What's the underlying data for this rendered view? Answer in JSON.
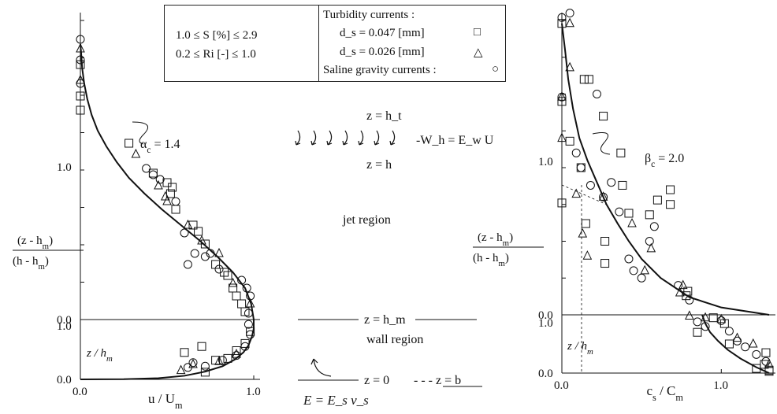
{
  "legend": {
    "range_S": "1.0 ≤ S [%] ≤ 2.9",
    "range_Ri": "0.2 ≤ Ri [-] ≤ 1.0",
    "turbidity_heading": "Turbidity currents :",
    "turbidity_047": "d_s = 0.047 [mm]",
    "turbidity_026": "d_s = 0.026 [mm]",
    "saline": "Saline gravity currents :",
    "symbols": {
      "d047": "□",
      "d026": "△",
      "saline": "○"
    }
  },
  "middle_labels": {
    "z_ht": "z = h_t",
    "entrainment": "-W_h = E_w U",
    "z_h": "z = h",
    "jet_region": "jet region",
    "z_hm": "z = h_m",
    "wall_region": "wall region",
    "z_0": "z = 0",
    "z_b": "- - - z = b",
    "E_formula": "E = E_s v_s"
  },
  "chart_data": [
    {
      "type": "scatter",
      "name": "velocity",
      "xlabel": "u / U_m",
      "ylabel_upper": "(z - h_m) / (h - h_m)",
      "ylabel_lower": "z / h_m",
      "curve_label": "α_c = 1.4",
      "x_ticks": [
        "0.0",
        "1.0"
      ],
      "upper_ticks": [
        "1.0",
        "0.0"
      ],
      "lower_ticks": [
        "1.0",
        "0.0"
      ],
      "xlim": [
        0,
        1
      ],
      "upper_ylim": [
        0,
        1.9
      ],
      "lower_ylim": [
        0,
        1
      ],
      "fit_curve": {
        "upper": [
          [
            1.0,
            0.0
          ],
          [
            0.985,
            0.1
          ],
          [
            0.95,
            0.2
          ],
          [
            0.88,
            0.3
          ],
          [
            0.79,
            0.4
          ],
          [
            0.69,
            0.5
          ],
          [
            0.58,
            0.6
          ],
          [
            0.47,
            0.7
          ],
          [
            0.37,
            0.8
          ],
          [
            0.28,
            0.9
          ],
          [
            0.21,
            1.0
          ],
          [
            0.15,
            1.1
          ],
          [
            0.1,
            1.2
          ],
          [
            0.065,
            1.3
          ],
          [
            0.04,
            1.4
          ],
          [
            0.022,
            1.5
          ],
          [
            0.01,
            1.6
          ],
          [
            0.004,
            1.7
          ],
          [
            0.0,
            1.75
          ]
        ],
        "lower": [
          [
            0.0,
            0.0
          ],
          [
            0.25,
            0.003
          ],
          [
            0.45,
            0.02
          ],
          [
            0.6,
            0.06
          ],
          [
            0.72,
            0.13
          ],
          [
            0.82,
            0.22
          ],
          [
            0.89,
            0.33
          ],
          [
            0.94,
            0.45
          ],
          [
            0.97,
            0.57
          ],
          [
            0.99,
            0.72
          ],
          [
            1.0,
            0.85
          ],
          [
            1.0,
            1.0
          ]
        ]
      },
      "series": [
        {
          "name": "d_s = 0.047 [mm]",
          "marker": "square",
          "upper": [
            [
              0.0,
              1.62
            ],
            [
              0.0,
              1.42
            ],
            [
              0.0,
              1.33
            ],
            [
              0.28,
              1.12
            ],
            [
              0.42,
              0.93
            ],
            [
              0.5,
              0.87
            ],
            [
              0.53,
              0.84
            ],
            [
              0.52,
              0.8
            ],
            [
              0.55,
              0.7
            ],
            [
              0.65,
              0.6
            ],
            [
              0.68,
              0.56
            ],
            [
              0.72,
              0.48
            ],
            [
              0.78,
              0.35
            ],
            [
              0.83,
              0.3
            ],
            [
              0.85,
              0.28
            ],
            [
              0.88,
              0.2
            ],
            [
              0.9,
              0.15
            ],
            [
              0.93,
              0.1
            ],
            [
              0.95,
              0.05
            ]
          ],
          "lower": [
            [
              0.6,
              0.45
            ],
            [
              0.7,
              0.55
            ],
            [
              0.78,
              0.32
            ],
            [
              0.85,
              0.35
            ],
            [
              0.9,
              0.48
            ],
            [
              0.95,
              0.6
            ],
            [
              0.98,
              0.8
            ],
            [
              0.72,
              0.12
            ]
          ]
        },
        {
          "name": "d_s = 0.026 [mm]",
          "marker": "triangle",
          "upper": [
            [
              0.0,
              1.52
            ],
            [
              0.0,
              1.72
            ],
            [
              0.32,
              1.05
            ],
            [
              0.45,
              0.85
            ],
            [
              0.49,
              0.78
            ],
            [
              0.5,
              0.75
            ],
            [
              0.62,
              0.6
            ],
            [
              0.7,
              0.5
            ],
            [
              0.8,
              0.42
            ],
            [
              0.88,
              0.23
            ],
            [
              0.98,
              0.1
            ]
          ],
          "lower": [
            [
              0.58,
              0.15
            ],
            [
              0.65,
              0.25
            ],
            [
              0.8,
              0.3
            ],
            [
              0.9,
              0.42
            ]
          ]
        },
        {
          "name": "Saline gravity currents :",
          "marker": "circle",
          "upper": [
            [
              0.0,
              1.78
            ],
            [
              0.0,
              1.65
            ],
            [
              0.0,
              1.5
            ],
            [
              0.38,
              0.96
            ],
            [
              0.42,
              0.92
            ],
            [
              0.46,
              0.89
            ],
            [
              0.55,
              0.75
            ],
            [
              0.6,
              0.55
            ],
            [
              0.66,
              0.42
            ],
            [
              0.72,
              0.4
            ],
            [
              0.75,
              0.42
            ],
            [
              0.62,
              0.35
            ],
            [
              0.8,
              0.32
            ],
            [
              0.93,
              0.25
            ],
            [
              0.96,
              0.2
            ],
            [
              0.98,
              0.15
            ],
            [
              0.97,
              0.04
            ]
          ],
          "lower": [
            [
              0.62,
              0.2
            ],
            [
              0.65,
              0.28
            ],
            [
              0.72,
              0.22
            ],
            [
              0.82,
              0.32
            ],
            [
              0.9,
              0.4
            ],
            [
              0.95,
              0.55
            ],
            [
              0.98,
              0.75
            ],
            [
              0.97,
              0.92
            ]
          ]
        }
      ]
    },
    {
      "type": "scatter",
      "name": "concentration",
      "xlabel": "c_s / C_m",
      "ylabel_upper": "(z - h_m) / (h - h_m)",
      "ylabel_lower": "z / h_m",
      "curve_label": "β_c = 2.0",
      "x_ticks": [
        "0.0",
        "1.0"
      ],
      "upper_ticks": [
        "1.0",
        "0.0"
      ],
      "lower_ticks": [
        "1.0",
        "0.0"
      ],
      "xlim": [
        0,
        1.3
      ],
      "upper_ylim": [
        0,
        2.0
      ],
      "lower_ylim": [
        0,
        1
      ],
      "fit_curve": {
        "upper": [
          [
            1.3,
            0.0
          ],
          [
            1.0,
            0.05
          ],
          [
            0.8,
            0.12
          ],
          [
            0.62,
            0.25
          ],
          [
            0.5,
            0.38
          ],
          [
            0.42,
            0.5
          ],
          [
            0.35,
            0.62
          ],
          [
            0.28,
            0.75
          ],
          [
            0.22,
            0.9
          ],
          [
            0.16,
            1.05
          ],
          [
            0.11,
            1.2
          ],
          [
            0.07,
            1.4
          ],
          [
            0.04,
            1.6
          ],
          [
            0.02,
            1.8
          ],
          [
            0.0,
            1.98
          ]
        ],
        "lower": [
          [
            1.3,
            0.0
          ],
          [
            1.22,
            0.1
          ],
          [
            1.12,
            0.25
          ],
          [
            1.04,
            0.4
          ],
          [
            0.98,
            0.55
          ],
          [
            0.93,
            0.7
          ],
          [
            0.9,
            0.85
          ],
          [
            0.88,
            1.0
          ]
        ]
      },
      "series": [
        {
          "name": "d_s = 0.047 [mm]",
          "marker": "square",
          "upper": [
            [
              0.0,
              1.98
            ],
            [
              0.0,
              1.45
            ],
            [
              0.0,
              0.76
            ],
            [
              0.05,
              1.18
            ],
            [
              0.14,
              1.6
            ],
            [
              0.17,
              1.6
            ],
            [
              0.26,
              1.35
            ],
            [
              0.37,
              1.1
            ],
            [
              0.38,
              0.88
            ],
            [
              0.42,
              0.69
            ],
            [
              0.55,
              0.68
            ],
            [
              0.6,
              0.78
            ],
            [
              0.12,
              1.0
            ],
            [
              0.27,
              0.35
            ],
            [
              0.27,
              0.5
            ],
            [
              0.68,
              0.85
            ],
            [
              0.68,
              0.75
            ],
            [
              0.78,
              0.13
            ],
            [
              0.79,
              0.16
            ],
            [
              0.15,
              0.62
            ]
          ],
          "lower": [
            [
              0.85,
              0.7
            ],
            [
              0.95,
              0.95
            ],
            [
              1.02,
              0.85
            ],
            [
              1.05,
              0.5
            ],
            [
              1.22,
              0.08
            ],
            [
              1.27,
              0.15
            ],
            [
              1.28,
              0.35
            ],
            [
              1.3,
              0.05
            ],
            [
              1.3,
              0.03
            ]
          ]
        },
        {
          "name": "d_s = 0.026 [mm]",
          "marker": "triangle",
          "upper": [
            [
              0.0,
              1.48
            ],
            [
              0.0,
              1.2
            ],
            [
              0.05,
              1.98
            ],
            [
              0.05,
              1.68
            ],
            [
              0.09,
              0.82
            ],
            [
              0.13,
              0.55
            ],
            [
              0.16,
              0.4
            ],
            [
              0.26,
              0.8
            ],
            [
              0.44,
              0.62
            ],
            [
              0.52,
              0.3
            ],
            [
              0.56,
              0.45
            ],
            [
              0.74,
              0.15
            ],
            [
              0.76,
              0.2
            ]
          ],
          "lower": [
            [
              0.8,
              0.98
            ],
            [
              0.9,
              0.95
            ],
            [
              1.0,
              0.92
            ],
            [
              1.1,
              0.6
            ],
            [
              1.2,
              0.5
            ],
            [
              1.3,
              0.15
            ]
          ]
        },
        {
          "name": "Saline gravity currents :",
          "marker": "circle",
          "upper": [
            [
              0.0,
              2.02
            ],
            [
              0.0,
              1.48
            ],
            [
              0.05,
              2.05
            ],
            [
              0.09,
              1.1
            ],
            [
              0.12,
              1.0
            ],
            [
              0.18,
              0.88
            ],
            [
              0.22,
              1.5
            ],
            [
              0.26,
              0.8
            ],
            [
              0.31,
              0.9
            ],
            [
              0.36,
              0.7
            ],
            [
              0.42,
              0.38
            ],
            [
              0.45,
              0.3
            ],
            [
              0.5,
              0.25
            ],
            [
              0.55,
              0.5
            ],
            [
              0.58,
              0.6
            ],
            [
              0.73,
              0.2
            ],
            [
              0.8,
              0.1
            ]
          ],
          "lower": [
            [
              0.85,
              0.88
            ],
            [
              0.9,
              0.8
            ],
            [
              1.0,
              0.9
            ],
            [
              1.05,
              0.72
            ],
            [
              1.1,
              0.55
            ],
            [
              1.15,
              0.45
            ],
            [
              1.22,
              0.32
            ],
            [
              1.28,
              0.2
            ]
          ]
        }
      ]
    }
  ]
}
